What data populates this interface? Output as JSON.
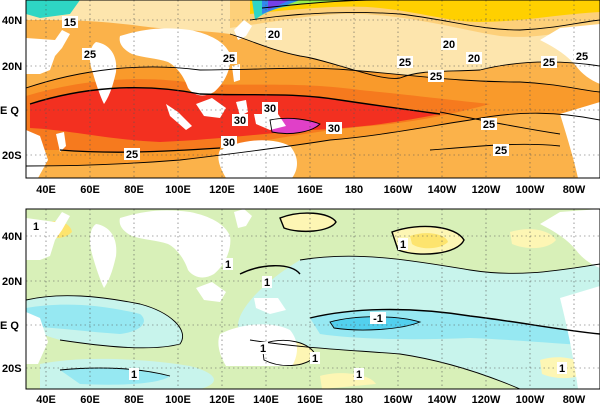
{
  "top_panel": {
    "y_labels": [
      "40N",
      "20N",
      "E Q",
      "20S"
    ],
    "x_labels": [
      "40E",
      "60E",
      "80E",
      "100E",
      "120E",
      "140E",
      "160E",
      "180",
      "160W",
      "140W",
      "120W",
      "100W",
      "80W"
    ],
    "contour_labels": [
      "15",
      "20",
      "20",
      "20",
      "25",
      "25",
      "25",
      "25",
      "25",
      "25",
      "25",
      "25",
      "30",
      "30",
      "30",
      "30"
    ],
    "colors": [
      "#fde5ad",
      "#fdd07a",
      "#fbb24a",
      "#f99a2b",
      "#f67a1e",
      "#f33020",
      "#e040c8",
      "#ffd000",
      "#9af04e",
      "#2ed6c4",
      "#3388ee",
      "#7440e8",
      "#a61fd0"
    ]
  },
  "bottom_panel": {
    "y_labels": [
      "40N",
      "20N",
      "E Q",
      "20S"
    ],
    "x_labels": [
      "40E",
      "60E",
      "80E",
      "100E",
      "120E",
      "140E",
      "160E",
      "180",
      "160W",
      "140W",
      "120W",
      "100W",
      "80W"
    ],
    "contour_labels": [
      "1",
      "1",
      "1",
      "1",
      "-1",
      "1",
      "1",
      "1",
      "1",
      "1"
    ],
    "colors": [
      "#d8f0b8",
      "#b8e890",
      "#c8f4ec",
      "#96e8f2",
      "#52d0ee",
      "#fdf6b4",
      "#fde46e",
      "#ffffff"
    ]
  }
}
